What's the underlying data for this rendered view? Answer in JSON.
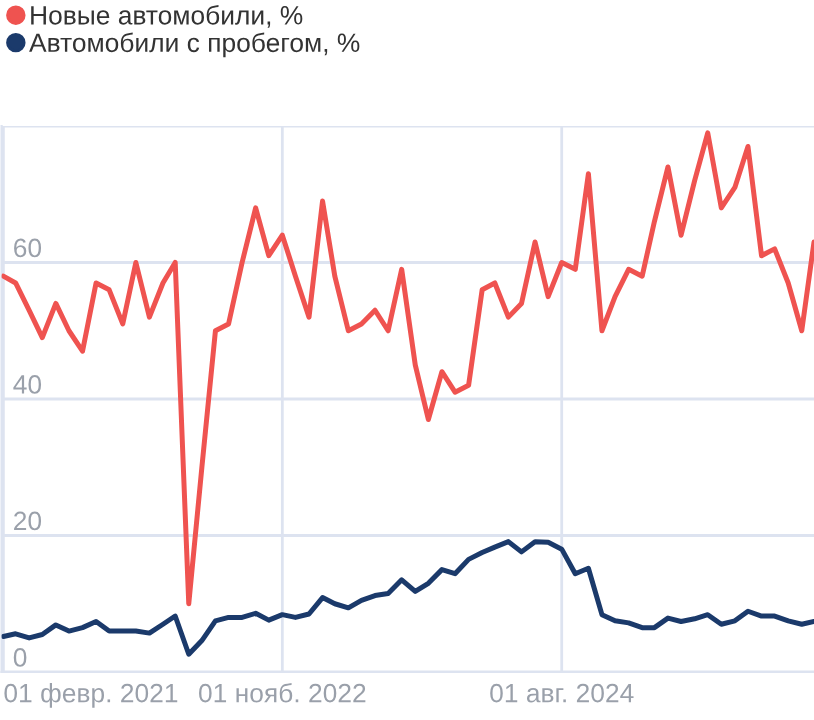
{
  "chart_data": {
    "type": "line",
    "x": [
      "2021-02",
      "2021-03",
      "2021-04",
      "2021-05",
      "2021-06",
      "2021-07",
      "2021-08",
      "2021-09",
      "2021-10",
      "2021-11",
      "2021-12",
      "2022-01",
      "2022-02",
      "2022-03",
      "2022-04",
      "2022-05",
      "2022-06",
      "2022-07",
      "2022-08",
      "2022-09",
      "2022-10",
      "2022-11",
      "2022-12",
      "2023-01",
      "2023-02",
      "2023-03",
      "2023-04",
      "2023-05",
      "2023-06",
      "2023-07",
      "2023-08",
      "2023-09",
      "2023-10",
      "2023-11",
      "2023-12",
      "2024-01",
      "2024-02",
      "2024-03",
      "2024-04",
      "2024-05",
      "2024-06",
      "2024-07",
      "2024-08",
      "2024-09",
      "2024-10",
      "2024-11",
      "2024-12",
      "2025-01",
      "2025-02",
      "2025-03",
      "2025-04",
      "2025-05",
      "2025-06",
      "2025-07",
      "2025-08",
      "2025-09",
      "2025-10",
      "2025-11",
      "2025-12",
      "2026-01",
      "2026-02",
      "2026-03"
    ],
    "series": [
      {
        "name": "Новые автомобили, %",
        "color": "#ef5350",
        "values": [
          58,
          57,
          53,
          49,
          54,
          50,
          47,
          57,
          56,
          51,
          60,
          52,
          57,
          60,
          10,
          30,
          50,
          51,
          60,
          68,
          61,
          64,
          58,
          52,
          69,
          58,
          50,
          51,
          53,
          50,
          59,
          45,
          37,
          44,
          41,
          42,
          56,
          57,
          52,
          54,
          63,
          55,
          60,
          59,
          73,
          50,
          55,
          59,
          58,
          66,
          74,
          64,
          72,
          79,
          68,
          71,
          77,
          61,
          62,
          57,
          50,
          63
        ]
      },
      {
        "name": "Автомобили с пробегом, %",
        "color": "#1b3a6b",
        "values": [
          5.2,
          5.6,
          5,
          5.5,
          6.9,
          6,
          6.5,
          7.4,
          6,
          6,
          6,
          5.7,
          7,
          8.2,
          2.6,
          4.6,
          7.5,
          8,
          8,
          8.6,
          7.6,
          8.4,
          8,
          8.5,
          10.9,
          10,
          9.4,
          10.5,
          11.2,
          11.5,
          13.5,
          11.8,
          13,
          15,
          14.4,
          16.5,
          17.5,
          18.3,
          19.1,
          17.6,
          19.1,
          19,
          18,
          14.4,
          15.2,
          8.4,
          7.5,
          7.2,
          6.5,
          6.5,
          7.9,
          7.4,
          7.8,
          8.4,
          7,
          7.5,
          8.9,
          8.2,
          8.2,
          7.5,
          7,
          7.4
        ]
      }
    ],
    "xlim": [
      "2021-01-28",
      "2026-03-01"
    ],
    "xticks": [
      {
        "value": "2021-02-01",
        "label": "01 февр. 2021"
      },
      {
        "value": "2022-11-01",
        "label": "01 нояб. 2022"
      },
      {
        "value": "2024-08-01",
        "label": "01 авг. 2024"
      }
    ],
    "ylim": [
      0,
      80
    ],
    "yticks": [
      0,
      20,
      40,
      60,
      {
        "value": 80,
        "label": null
      }
    ],
    "grid": true,
    "legend": "top left",
    "marker": "none",
    "line_style": "solid"
  }
}
